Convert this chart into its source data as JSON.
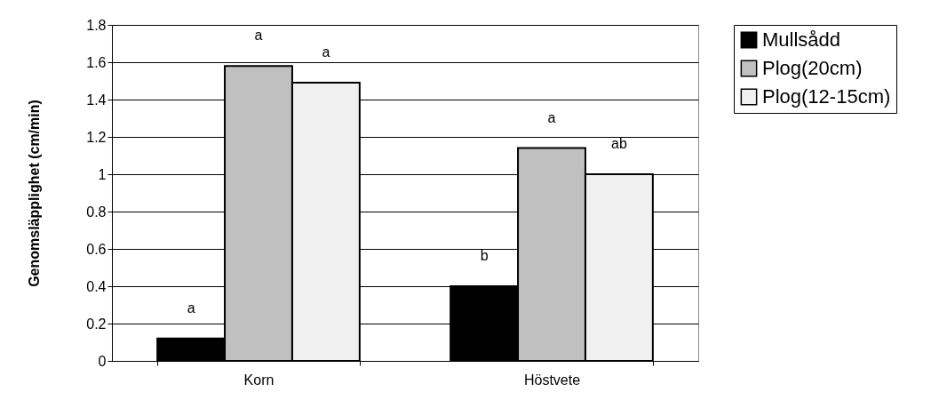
{
  "chart_data": {
    "type": "bar",
    "ylabel": "Genomsläpplighet (cm/min)",
    "categories": [
      "Korn",
      "Höstvete"
    ],
    "series": [
      {
        "name": "Mullsådd",
        "color": "#000000",
        "values": [
          0.12,
          0.4
        ],
        "value_labels": [
          "a",
          "b"
        ]
      },
      {
        "name": "Plog(20cm)",
        "color": "#c0c0c0",
        "values": [
          1.58,
          1.14
        ],
        "value_labels": [
          "a",
          "a"
        ]
      },
      {
        "name": "Plog(12-15cm)",
        "color": "#f0f0f0",
        "values": [
          1.49,
          1.0
        ],
        "value_labels": [
          "a",
          "ab"
        ]
      }
    ],
    "ylim": [
      0,
      1.8
    ],
    "yticks": [
      0,
      0.2,
      0.4,
      0.6,
      0.8,
      1,
      1.2,
      1.4,
      1.6,
      1.8
    ],
    "grid": "y",
    "legend": "right"
  }
}
